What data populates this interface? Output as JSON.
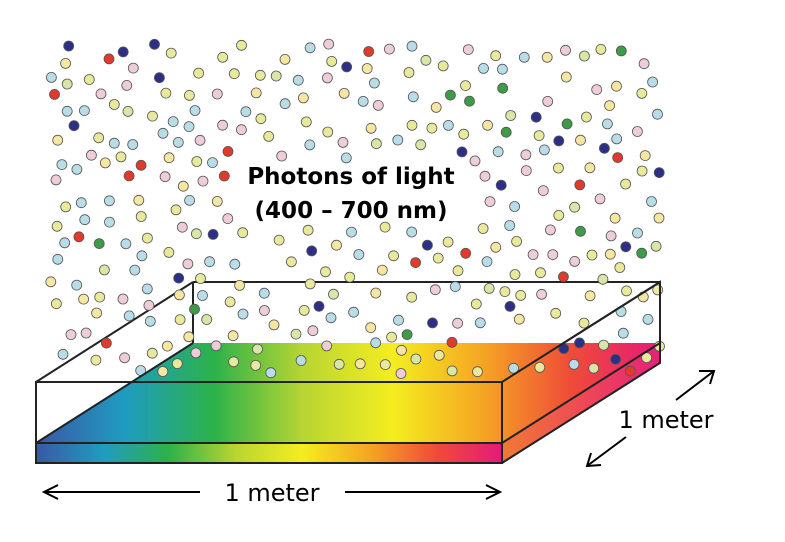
{
  "title_line1": "Photons of light",
  "title_line2": "(400 – 700 nm)",
  "label_width": "1 meter",
  "label_depth": "1 meter",
  "photon_colors": [
    "#e8e99a",
    "#b9dde6",
    "#eeccd9",
    "#f5e6a2",
    "#d8e7a8",
    "#e13a2c",
    "#2d2f86",
    "#3e9b47"
  ],
  "spectrum_colors": [
    "#3a57a6",
    "#1f9cc0",
    "#2cb24a",
    "#b9d532",
    "#f4ed1f",
    "#f5a623",
    "#ef4c38",
    "#e5197a"
  ]
}
